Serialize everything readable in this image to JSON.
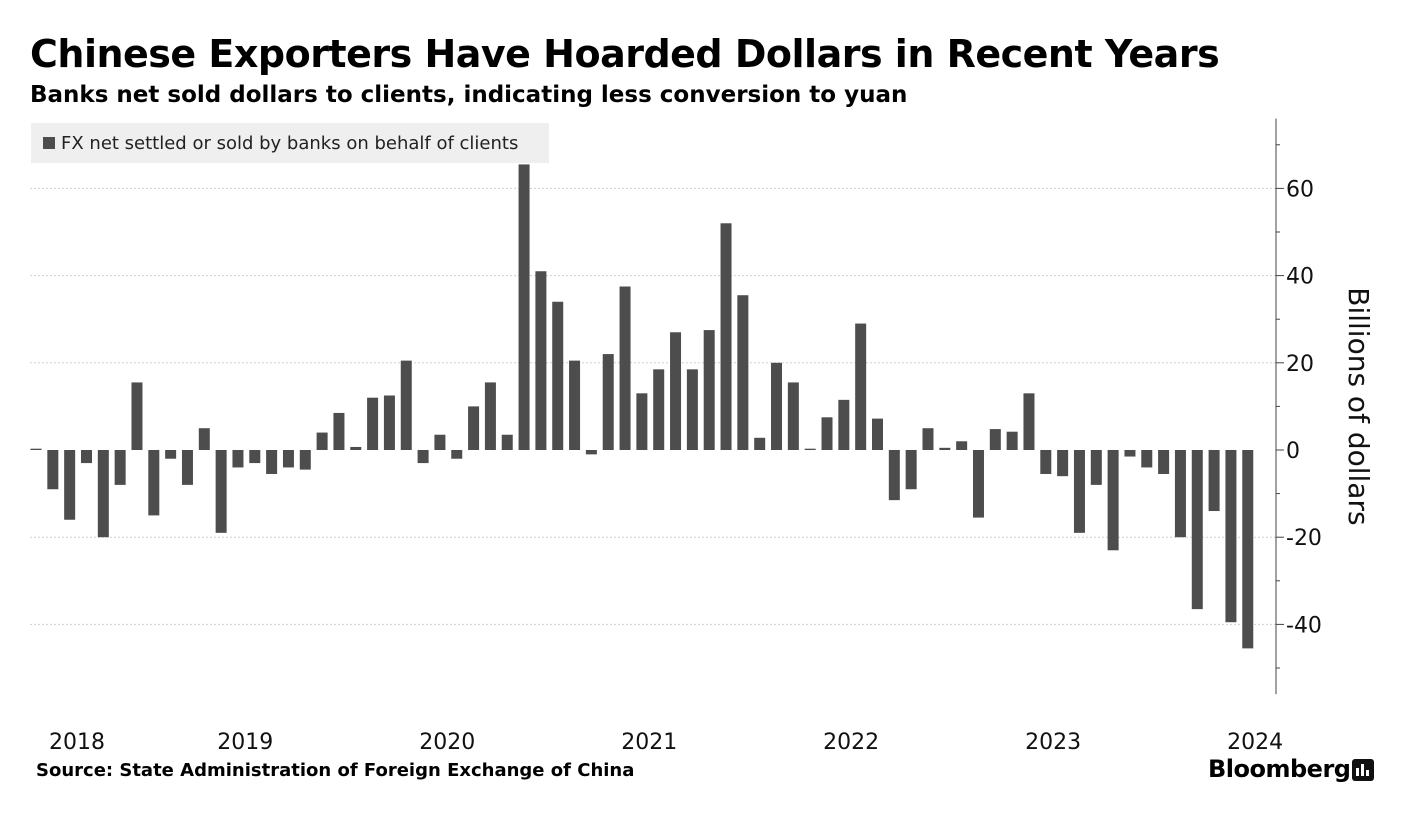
{
  "header": {
    "title": "Chinese Exporters Have Hoarded Dollars in Recent Years",
    "subtitle": "Banks net sold dollars to clients, indicating less conversion to yuan"
  },
  "footer": {
    "source": "Source: State Administration of Foreign Exchange of China",
    "brand": "Bloomberg"
  },
  "colors": {
    "bar": "#4d4d4d",
    "grid": "#cfcfcf",
    "legend_bg": "#efefef"
  },
  "icons": {
    "brand_logo": "bloomberg-chart-icon"
  },
  "chart_data": {
    "type": "bar",
    "legend": "FX net settled or sold by banks on behalf of clients",
    "legend_position": "top-left",
    "ylabel": "Billions of dollars",
    "y_axis_side": "right",
    "ylim": [
      -56,
      76
    ],
    "yticks": [
      -40,
      -20,
      0,
      20,
      40,
      60
    ],
    "ytick_labels": [
      "-40",
      "-20",
      "0",
      "20",
      "40",
      "60"
    ],
    "grid": true,
    "year_labels": [
      {
        "label": "2018",
        "index": 0
      },
      {
        "label": "2019",
        "index": 10
      },
      {
        "label": "2020",
        "index": 22
      },
      {
        "label": "2021",
        "index": 34
      },
      {
        "label": "2022",
        "index": 46
      },
      {
        "label": "2023",
        "index": 58
      },
      {
        "label": "2024",
        "index": 70
      }
    ],
    "values": [
      0.3,
      -9,
      -16,
      -3,
      -20,
      -8,
      15.5,
      -15,
      -2,
      -8,
      5,
      -19,
      -4,
      -3,
      -5.5,
      -4,
      -4.5,
      4,
      8.5,
      0.7,
      12,
      12.5,
      20.5,
      -3,
      3.5,
      -2,
      10,
      15.5,
      3.5,
      65.5,
      41,
      34,
      20.5,
      -1,
      22,
      37.5,
      13,
      18.5,
      27,
      18.5,
      27.5,
      52,
      35.5,
      2.8,
      20,
      15.5,
      0.3,
      7.5,
      11.5,
      29,
      7.2,
      -11.5,
      -9,
      5,
      0.5,
      2,
      -15.5,
      4.8,
      4.2,
      13,
      -5.5,
      -6,
      -19,
      -8,
      -23,
      -1.5,
      -4,
      -5.5,
      -20,
      -36.5,
      -14,
      -39.5,
      -45.5
    ]
  }
}
